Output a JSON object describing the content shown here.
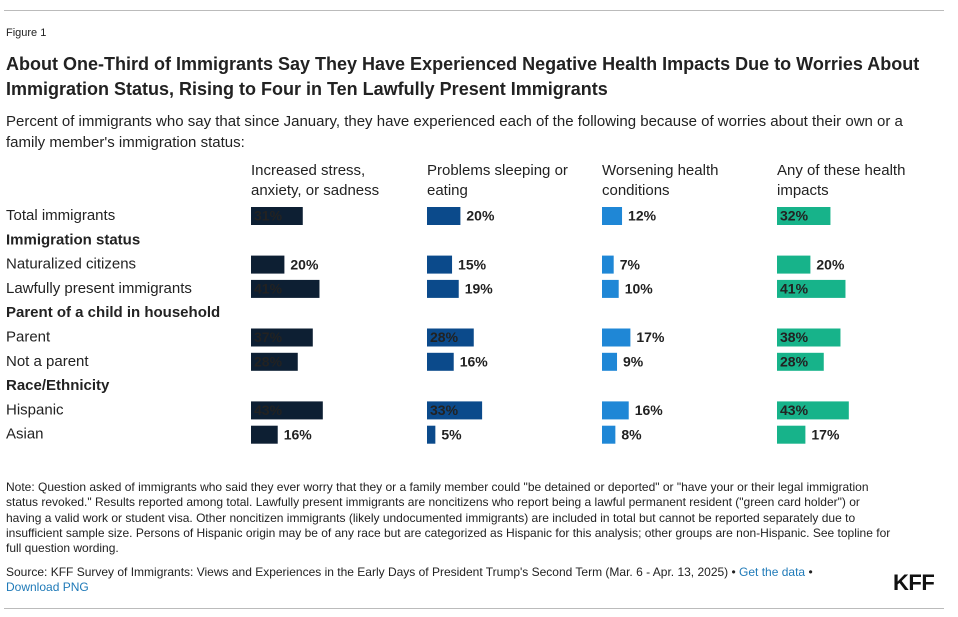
{
  "chart_data": {
    "type": "bar",
    "orientation": "horizontal",
    "figure_label": "Figure 1",
    "title": "About One-Third of Immigrants Say They Have Experienced Negative Health Impacts Due to Worries About Immigration Status, Rising to Four in Ten Lawfully Present Immigrants",
    "subtitle": "Percent of immigrants who say that since January, they have experienced each of the following because of worries about their own or a family member's immigration status:",
    "categories": [
      "Total immigrants",
      "Immigration status",
      "Naturalized citizens",
      "Lawfully present immigrants",
      "Parent of a child in household",
      "Parent",
      "Not a parent",
      "Race/Ethnicity",
      "Hispanic",
      "Asian"
    ],
    "series": [
      {
        "name": "Increased stress, anxiety, or sadness",
        "color": "#0d1f33",
        "values": [
          31,
          null,
          20,
          41,
          null,
          37,
          28,
          null,
          43,
          16
        ],
        "value_labels": [
          "31%",
          null,
          "20%",
          "41%",
          null,
          "37%",
          "28%",
          null,
          "43%",
          "16%"
        ]
      },
      {
        "name": "Problems sleeping or eating",
        "color": "#0b4a8b",
        "values": [
          20,
          null,
          15,
          19,
          null,
          28,
          16,
          null,
          33,
          5
        ],
        "value_labels": [
          "20%",
          null,
          "15%",
          "19%",
          null,
          "28%",
          "16%",
          null,
          "33%",
          "5%"
        ]
      },
      {
        "name": "Worsening health conditions",
        "color": "#1f87d6",
        "values": [
          12,
          null,
          7,
          10,
          null,
          17,
          9,
          null,
          16,
          8
        ],
        "value_labels": [
          "12%",
          null,
          "7%",
          "10%",
          null,
          "17%",
          "9%",
          null,
          "16%",
          "8%"
        ]
      },
      {
        "name": "Any of these health impacts",
        "color": "#17b38a",
        "values": [
          32,
          null,
          20,
          41,
          null,
          38,
          28,
          null,
          43,
          17
        ],
        "value_labels": [
          "32%",
          null,
          "20%",
          "41%",
          null,
          "38%",
          "28%",
          null,
          "43%",
          "17%"
        ]
      }
    ],
    "note": "Note: Question asked of immigrants who said they ever worry that they or a family member could \"be detained or deported\" or \"have your or their legal immigration status revoked.\" Results reported among total. Lawfully present immigrants are noncitizens who report being a lawful permanent resident (\"green card holder\") or having a valid work or student visa. Other noncitizen immigrants (likely undocumented immigrants) are included in total but cannot be reported separately due to insufficient sample size. Persons of Hispanic origin may be of any race but are categorized as Hispanic for this analysis; other groups are non-Hispanic. See topline for full question wording.",
    "source": "Source: KFF Survey of Immigrants: Views and Experiences in the Early Days of President Trump's Second Term (Mar. 6 - Apr. 13, 2025) •",
    "links": [
      "Get the data",
      "Download PNG"
    ],
    "separator": "•",
    "logo": "KFF"
  }
}
